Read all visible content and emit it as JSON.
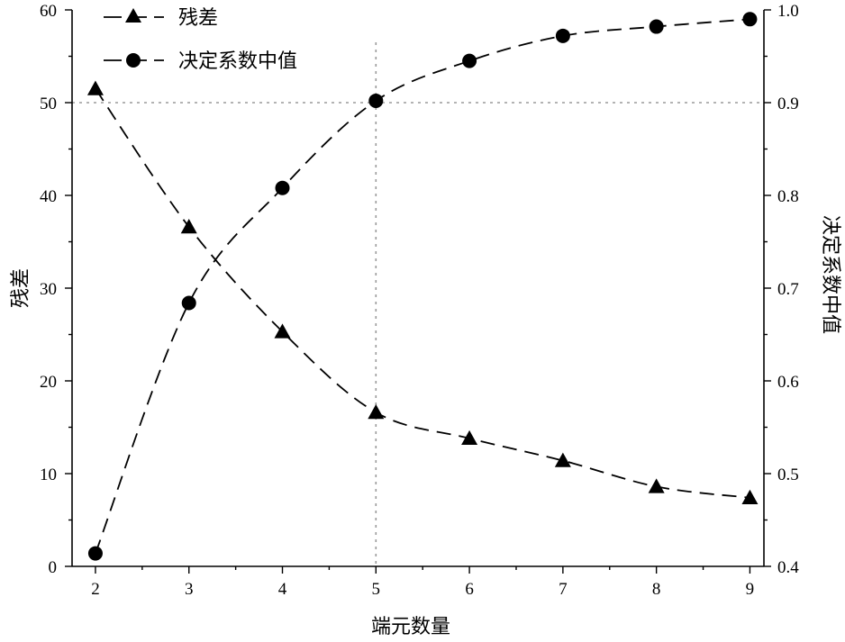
{
  "chart_data": {
    "type": "line",
    "title": "",
    "xlabel": "端元数量",
    "ylabel_left": "残差",
    "ylabel_right": "决定系数中值",
    "x": [
      2,
      3,
      4,
      5,
      6,
      7,
      8,
      9
    ],
    "xlim": [
      1.75,
      9.15
    ],
    "ylim_left": [
      0,
      60
    ],
    "ylim_right": [
      0.4,
      1.0
    ],
    "x_ticks": [
      2,
      3,
      4,
      5,
      6,
      7,
      8,
      9
    ],
    "y_left_ticks": [
      0,
      10,
      20,
      30,
      40,
      50,
      60
    ],
    "y_right_ticks": [
      "0.4",
      "0.5",
      "0.6",
      "0.7",
      "0.8",
      "0.9",
      "1.0"
    ],
    "grid": false,
    "legend_position": "top-left",
    "reference_lines": {
      "x": 5,
      "y_left": 50
    },
    "series": [
      {
        "name": "残差",
        "axis": "left",
        "marker": "triangle",
        "values": [
          51.5,
          36.6,
          25.3,
          16.6,
          13.8,
          11.4,
          8.6,
          7.4
        ]
      },
      {
        "name": "决定系数中值",
        "axis": "right",
        "marker": "circle",
        "values": [
          0.414,
          0.684,
          0.808,
          0.902,
          0.945,
          0.972,
          0.982,
          0.99
        ]
      }
    ]
  }
}
